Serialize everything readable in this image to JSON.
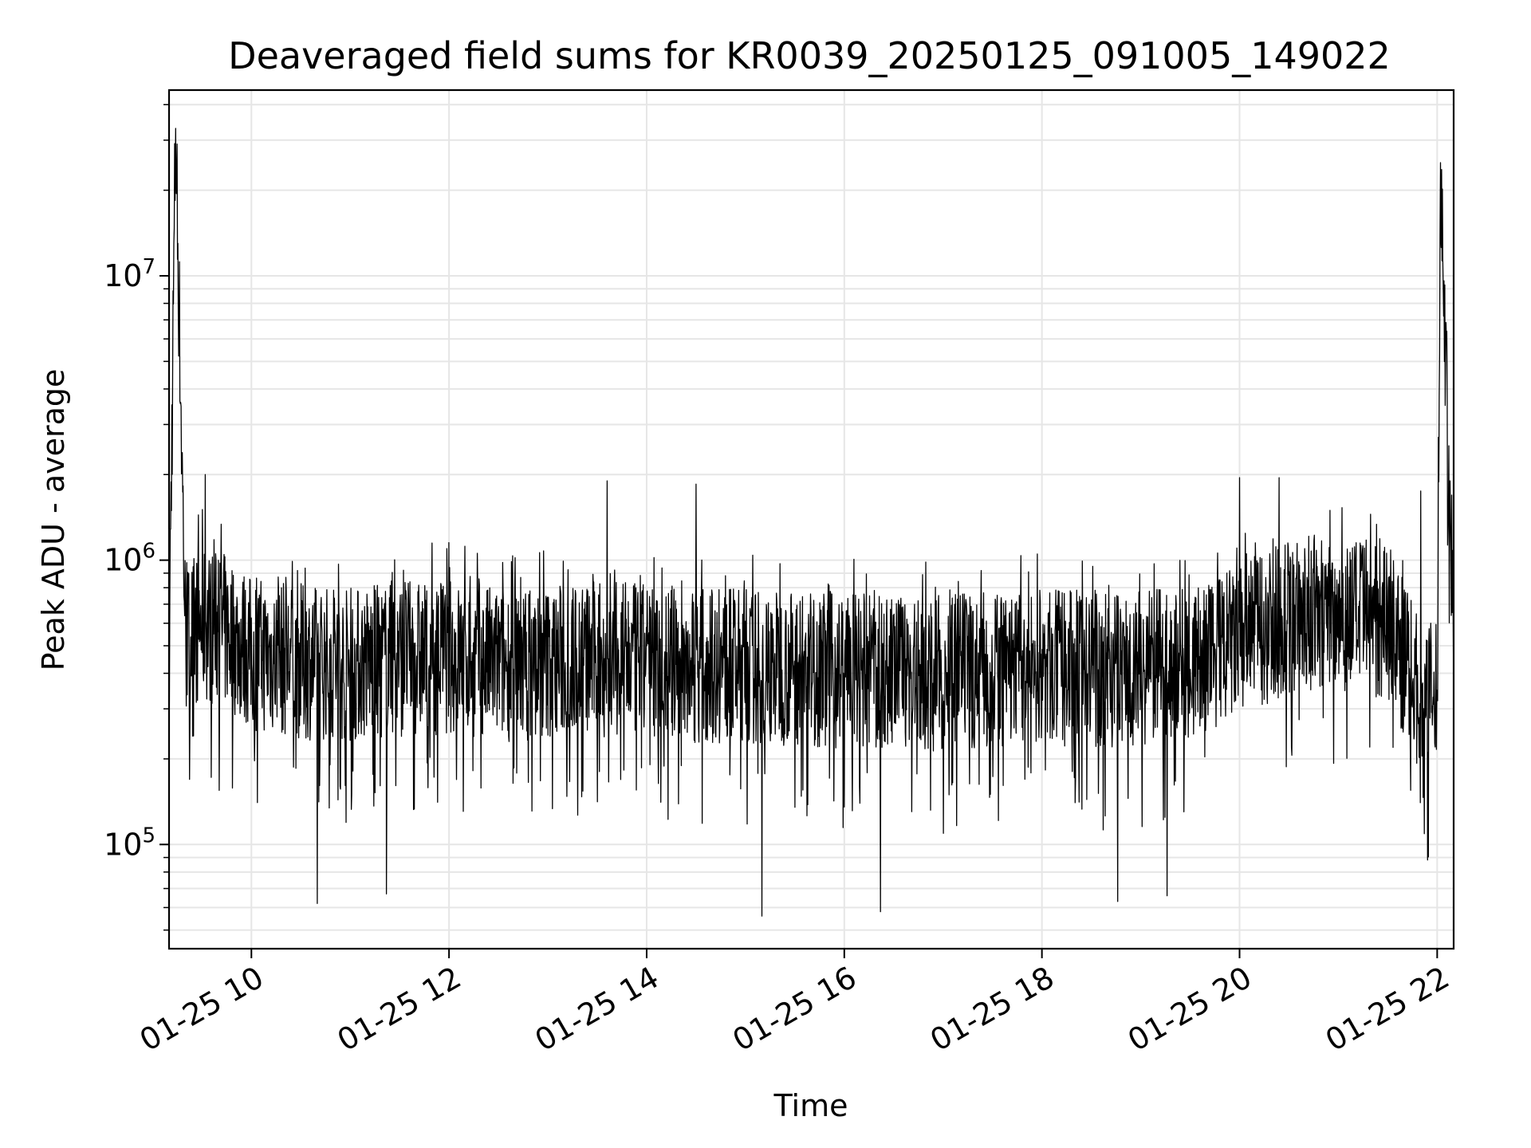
{
  "chart_data": {
    "type": "line",
    "title": "Deaveraged field sums for KR0039_20250125_091005_149022",
    "xlabel": "Time",
    "ylabel": "Peak ADU - average",
    "x_scale": "time",
    "y_scale": "log",
    "xlim": [
      "2025-01-25 09:10",
      "2025-01-25 22:10"
    ],
    "ylim": [
      43000,
      45000000
    ],
    "x_ticks": [
      {
        "value": "2025-01-25 10:00",
        "label": "01-25 10"
      },
      {
        "value": "2025-01-25 12:00",
        "label": "01-25 12"
      },
      {
        "value": "2025-01-25 14:00",
        "label": "01-25 14"
      },
      {
        "value": "2025-01-25 16:00",
        "label": "01-25 16"
      },
      {
        "value": "2025-01-25 18:00",
        "label": "01-25 18"
      },
      {
        "value": "2025-01-25 20:00",
        "label": "01-25 20"
      },
      {
        "value": "2025-01-25 22:00",
        "label": "01-25 22"
      }
    ],
    "y_ticks": [
      {
        "value": 100000,
        "base": "10",
        "exp": "5"
      },
      {
        "value": 1000000,
        "base": "10",
        "exp": "6"
      },
      {
        "value": 10000000,
        "base": "10",
        "exp": "7"
      }
    ],
    "grid": true,
    "line_color": "#000000",
    "grid_color": "#e6e6e6",
    "series": [
      {
        "x": [
          "2025-01-25 09:10",
          "2025-01-25 09:14",
          "2025-01-25 09:20",
          "2025-01-25 09:30",
          "2025-01-25 09:45",
          "2025-01-25 10:00",
          "2025-01-25 10:30",
          "2025-01-25 11:00",
          "2025-01-25 11:30",
          "2025-01-25 12:00",
          "2025-01-25 12:30",
          "2025-01-25 13:00",
          "2025-01-25 13:30",
          "2025-01-25 14:00",
          "2025-01-25 14:30",
          "2025-01-25 15:00",
          "2025-01-25 15:30",
          "2025-01-25 16:00",
          "2025-01-25 16:30",
          "2025-01-25 17:00",
          "2025-01-25 17:30",
          "2025-01-25 18:00",
          "2025-01-25 18:30",
          "2025-01-25 19:00",
          "2025-01-25 19:30",
          "2025-01-25 20:00",
          "2025-01-25 20:30",
          "2025-01-25 21:00",
          "2025-01-25 21:30",
          "2025-01-25 21:50",
          "2025-01-25 22:00",
          "2025-01-25 22:02",
          "2025-01-25 22:10"
        ],
        "y": [
          420000,
          33000000,
          520000,
          600000,
          560000,
          470000,
          440000,
          430000,
          450000,
          460000,
          430000,
          440000,
          450000,
          440000,
          430000,
          420000,
          420000,
          410000,
          400000,
          400000,
          410000,
          420000,
          410000,
          420000,
          430000,
          520000,
          640000,
          660000,
          610000,
          330000,
          320000,
          25000000,
          480000
        ]
      }
    ],
    "noise": {
      "band_low_factor": 0.45,
      "band_high_factor": 2.1,
      "lowest_dips": [
        {
          "x": "2025-01-25 10:40",
          "y": 62000
        },
        {
          "x": "2025-01-25 11:22",
          "y": 67000
        },
        {
          "x": "2025-01-25 15:10",
          "y": 56000
        },
        {
          "x": "2025-01-25 16:22",
          "y": 58000
        },
        {
          "x": "2025-01-25 18:46",
          "y": 63000
        },
        {
          "x": "2025-01-25 19:16",
          "y": 66000
        }
      ],
      "highest_peaks": [
        {
          "x": "2025-01-25 09:32",
          "y": 2000000
        },
        {
          "x": "2025-01-25 13:36",
          "y": 1900000
        },
        {
          "x": "2025-01-25 14:30",
          "y": 1850000
        },
        {
          "x": "2025-01-25 20:00",
          "y": 1950000
        },
        {
          "x": "2025-01-25 20:24",
          "y": 1950000
        },
        {
          "x": "2025-01-25 21:50",
          "y": 1750000
        }
      ]
    }
  }
}
